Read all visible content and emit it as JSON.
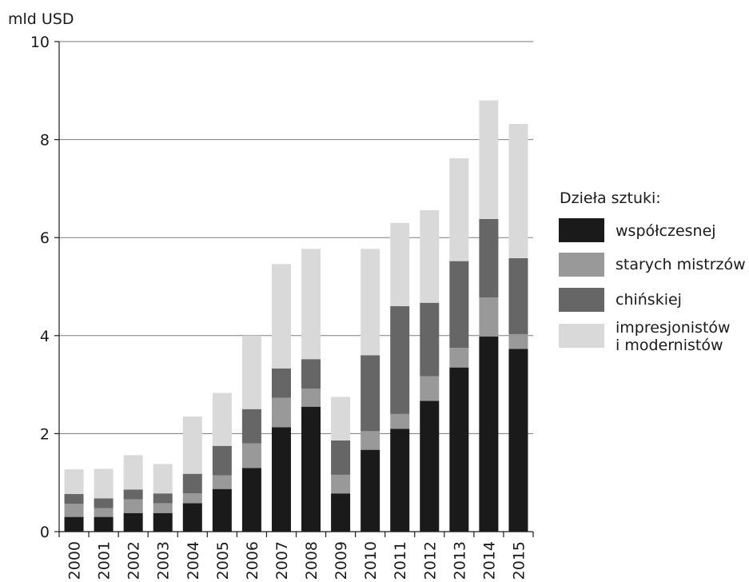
{
  "chart_data": {
    "type": "bar",
    "stacked": true,
    "unit_label": "mld USD",
    "categories": [
      "2000",
      "2001",
      "2002",
      "2003",
      "2004",
      "2005",
      "2006",
      "2007",
      "2008",
      "2009",
      "2010",
      "2011",
      "2012",
      "2013",
      "2014",
      "2015"
    ],
    "ylim": [
      0,
      10
    ],
    "yticks": [
      0,
      2,
      4,
      6,
      8,
      10
    ],
    "grid": true,
    "legend": {
      "title": "Dzieła sztuki:",
      "placement": "right"
    },
    "series": [
      {
        "name": "współczesnej",
        "color": "#1a1a1a",
        "values": [
          0.3,
          0.3,
          0.38,
          0.38,
          0.58,
          0.87,
          1.3,
          2.13,
          2.55,
          0.78,
          1.67,
          2.1,
          2.67,
          3.35,
          3.98,
          3.73
        ]
      },
      {
        "name": "starych mistrzów",
        "color": "#999999",
        "values": [
          0.27,
          0.18,
          0.28,
          0.2,
          0.2,
          0.28,
          0.5,
          0.6,
          0.37,
          0.38,
          0.38,
          0.3,
          0.5,
          0.4,
          0.8,
          0.3
        ]
      },
      {
        "name": "chińskiej",
        "color": "#666666",
        "values": [
          0.2,
          0.2,
          0.2,
          0.2,
          0.4,
          0.6,
          0.7,
          0.6,
          0.6,
          0.7,
          1.55,
          2.2,
          1.5,
          1.77,
          1.6,
          1.55
        ]
      },
      {
        "name": "impresjonistów\ni modernistów",
        "color": "#d9d9d9",
        "values": [
          0.5,
          0.6,
          0.7,
          0.6,
          1.17,
          1.08,
          1.5,
          2.13,
          2.25,
          0.89,
          2.17,
          1.7,
          1.89,
          2.1,
          2.42,
          2.74
        ]
      }
    ]
  }
}
